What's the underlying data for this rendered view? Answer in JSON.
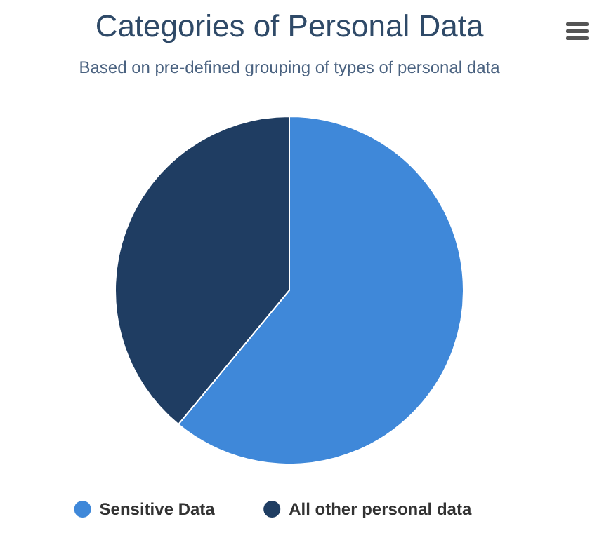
{
  "chart_data": {
    "type": "pie",
    "title": "Categories of Personal Data",
    "subtitle": "Based on pre-defined grouping of types of personal data",
    "categories": [
      "Sensitive Data",
      "All other personal data"
    ],
    "values": [
      61,
      39
    ],
    "colors": [
      "#3f88d9",
      "#1f3d62"
    ],
    "legend": "bottom"
  }
}
